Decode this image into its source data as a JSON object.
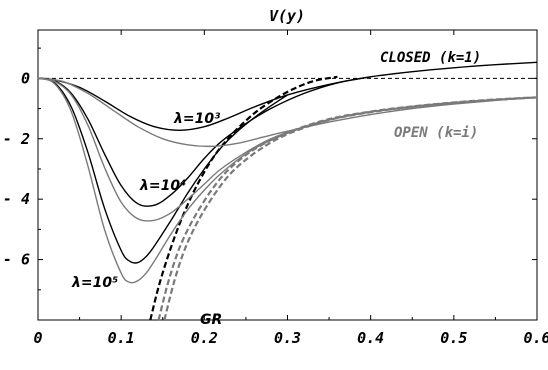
{
  "chart_data": {
    "type": "line",
    "title": "V(y)",
    "xlabel": "",
    "ylabel": "",
    "xlim": [
      0,
      0.6
    ],
    "ylim": [
      -8,
      1.6
    ],
    "x_ticks": [
      "0",
      "0.1",
      "0.2",
      "0.3",
      "0.4",
      "0.5",
      "0.6"
    ],
    "y_ticks": [
      "0",
      "-2",
      "-4",
      "-6"
    ],
    "annotations": {
      "closed": "CLOSED (k=1)",
      "open": "OPEN (k=i)",
      "gr": "GR",
      "lam3": "λ=10³",
      "lam4": "λ=10⁴",
      "lam5": "λ=10⁵"
    },
    "colors": {
      "closed": "#000000",
      "open": "#7a7a7a"
    },
    "series": [
      {
        "group": "closed",
        "dashed": false,
        "x": [
          0,
          0.02,
          0.05,
          0.08,
          0.11,
          0.14,
          0.17,
          0.2,
          0.23,
          0.26,
          0.3,
          0.35,
          0.4,
          0.45,
          0.5,
          0.55,
          0.6
        ],
        "y": [
          0,
          -0.05,
          -0.3,
          -0.75,
          -1.25,
          -1.6,
          -1.72,
          -1.6,
          -1.3,
          -0.95,
          -0.55,
          -0.2,
          0.05,
          0.22,
          0.35,
          0.45,
          0.53
        ]
      },
      {
        "group": "closed",
        "dashed": false,
        "x": [
          0,
          0.02,
          0.04,
          0.06,
          0.08,
          0.1,
          0.12,
          0.14,
          0.16,
          0.18,
          0.2,
          0.22,
          0.25,
          0.28,
          0.32,
          0.36,
          0.4
        ],
        "y": [
          0,
          -0.08,
          -0.5,
          -1.35,
          -2.5,
          -3.55,
          -4.15,
          -4.2,
          -3.85,
          -3.3,
          -2.65,
          -2.1,
          -1.5,
          -1.0,
          -0.5,
          -0.15,
          0.05
        ]
      },
      {
        "group": "closed",
        "dashed": false,
        "x": [
          0,
          0.02,
          0.04,
          0.06,
          0.08,
          0.1,
          0.11,
          0.12,
          0.13,
          0.14,
          0.16,
          0.18,
          0.2,
          0.22,
          0.24,
          0.27,
          0.3
        ],
        "y": [
          0,
          -0.15,
          -0.95,
          -2.45,
          -4.3,
          -5.7,
          -6.05,
          -6.1,
          -5.9,
          -5.55,
          -4.7,
          -3.8,
          -3.0,
          -2.3,
          -1.75,
          -1.1,
          -0.55
        ]
      },
      {
        "group": "closed",
        "dashed": true,
        "x": [
          0.135,
          0.145,
          0.155,
          0.165,
          0.175,
          0.19,
          0.21,
          0.23,
          0.25,
          0.27,
          0.3,
          0.33,
          0.36
        ],
        "y": [
          -8,
          -6.9,
          -6.0,
          -5.2,
          -4.5,
          -3.6,
          -2.65,
          -1.95,
          -1.4,
          -0.95,
          -0.45,
          -0.1,
          0.05
        ]
      },
      {
        "group": "open",
        "dashed": false,
        "x": [
          0,
          0.03,
          0.06,
          0.09,
          0.12,
          0.15,
          0.18,
          0.21,
          0.24,
          0.27,
          0.3,
          0.35,
          0.4,
          0.45,
          0.5,
          0.55,
          0.6
        ],
        "y": [
          0,
          -0.1,
          -0.5,
          -1.05,
          -1.6,
          -2.0,
          -2.2,
          -2.25,
          -2.15,
          -1.95,
          -1.75,
          -1.45,
          -1.2,
          -1.0,
          -0.85,
          -0.73,
          -0.63
        ]
      },
      {
        "group": "open",
        "dashed": false,
        "x": [
          0,
          0.02,
          0.04,
          0.06,
          0.08,
          0.1,
          0.12,
          0.14,
          0.16,
          0.18,
          0.2,
          0.22,
          0.25,
          0.28,
          0.32,
          0.36,
          0.4,
          0.45,
          0.5,
          0.55,
          0.6
        ],
        "y": [
          0,
          -0.1,
          -0.55,
          -1.55,
          -2.95,
          -4.1,
          -4.65,
          -4.7,
          -4.45,
          -4.0,
          -3.5,
          -3.0,
          -2.45,
          -2.0,
          -1.6,
          -1.3,
          -1.1,
          -0.95,
          -0.82,
          -0.72,
          -0.63
        ]
      },
      {
        "group": "open",
        "dashed": false,
        "x": [
          0,
          0.02,
          0.04,
          0.06,
          0.08,
          0.1,
          0.11,
          0.12,
          0.13,
          0.14,
          0.16,
          0.18,
          0.2,
          0.22,
          0.25,
          0.28,
          0.32,
          0.36,
          0.4,
          0.45,
          0.5,
          0.55,
          0.6
        ],
        "y": [
          0,
          -0.18,
          -1.1,
          -2.9,
          -5.0,
          -6.45,
          -6.75,
          -6.7,
          -6.45,
          -6.05,
          -5.15,
          -4.35,
          -3.7,
          -3.15,
          -2.5,
          -2.05,
          -1.62,
          -1.32,
          -1.12,
          -0.95,
          -0.82,
          -0.72,
          -0.63
        ]
      },
      {
        "group": "open",
        "dashed": true,
        "x": [
          0.145,
          0.155,
          0.165,
          0.175,
          0.19,
          0.21,
          0.23,
          0.26,
          0.3,
          0.35,
          0.4,
          0.45,
          0.5,
          0.55,
          0.6
        ],
        "y": [
          -8,
          -6.9,
          -6.0,
          -5.3,
          -4.5,
          -3.65,
          -3.0,
          -2.35,
          -1.8,
          -1.35,
          -1.1,
          -0.93,
          -0.8,
          -0.7,
          -0.63
        ]
      },
      {
        "group": "open",
        "dashed": true,
        "x": [
          0.152,
          0.162,
          0.172,
          0.182,
          0.197,
          0.217,
          0.237,
          0.267,
          0.3,
          0.35,
          0.4,
          0.45,
          0.5,
          0.55,
          0.6
        ],
        "y": [
          -8,
          -6.9,
          -6.0,
          -5.3,
          -4.5,
          -3.65,
          -3.0,
          -2.35,
          -1.85,
          -1.38,
          -1.12,
          -0.94,
          -0.81,
          -0.71,
          -0.63
        ]
      }
    ]
  }
}
